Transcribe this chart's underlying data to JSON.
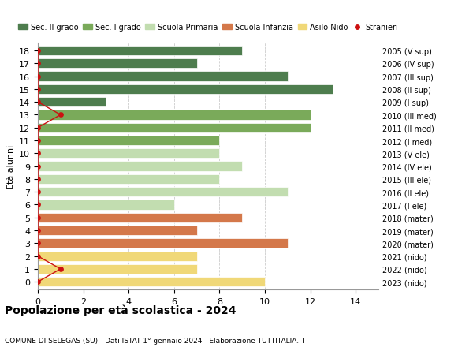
{
  "ages": [
    18,
    17,
    16,
    15,
    14,
    13,
    12,
    11,
    10,
    9,
    8,
    7,
    6,
    5,
    4,
    3,
    2,
    1,
    0
  ],
  "right_labels": [
    "2005 (V sup)",
    "2006 (IV sup)",
    "2007 (III sup)",
    "2008 (II sup)",
    "2009 (I sup)",
    "2010 (III med)",
    "2011 (II med)",
    "2012 (I med)",
    "2013 (V ele)",
    "2014 (IV ele)",
    "2015 (III ele)",
    "2016 (II ele)",
    "2017 (I ele)",
    "2018 (mater)",
    "2019 (mater)",
    "2020 (mater)",
    "2021 (nido)",
    "2022 (nido)",
    "2023 (nido)"
  ],
  "values": [
    9,
    7,
    11,
    13,
    3,
    12,
    12,
    8,
    8,
    9,
    8,
    11,
    6,
    9,
    7,
    11,
    7,
    7,
    10
  ],
  "bar_colors": [
    "#4e7d4e",
    "#4e7d4e",
    "#4e7d4e",
    "#4e7d4e",
    "#4e7d4e",
    "#7aaa5a",
    "#7aaa5a",
    "#7aaa5a",
    "#c2ddb0",
    "#c2ddb0",
    "#c2ddb0",
    "#c2ddb0",
    "#c2ddb0",
    "#d4784a",
    "#d4784a",
    "#d4784a",
    "#f0d878",
    "#f0d878",
    "#f0d878"
  ],
  "stranieri_values": [
    0,
    0,
    0,
    0,
    0,
    1,
    0,
    0,
    0,
    0,
    0,
    0,
    0,
    0,
    0,
    0,
    0,
    1,
    0
  ],
  "stranieri_color": "#cc1111",
  "legend_items": [
    {
      "label": "Sec. II grado",
      "color": "#4e7d4e"
    },
    {
      "label": "Sec. I grado",
      "color": "#7aaa5a"
    },
    {
      "label": "Scuola Primaria",
      "color": "#c2ddb0"
    },
    {
      "label": "Scuola Infanzia",
      "color": "#d4784a"
    },
    {
      "label": "Asilo Nido",
      "color": "#f0d878"
    },
    {
      "label": "Stranieri",
      "color": "#cc1111"
    }
  ],
  "ylabel_left": "Età alunni",
  "title_bold": "Popolazione per età scolastica - 2024",
  "subtitle": "COMUNE DI SELEGAS (SU) - Dati ISTAT 1° gennaio 2024 - Elaborazione TUTTITALIA.IT",
  "xlim": [
    0,
    15
  ],
  "xticks": [
    0,
    2,
    4,
    6,
    8,
    10,
    12,
    14
  ],
  "grid_color": "#cccccc",
  "background_color": "#ffffff",
  "bar_height": 0.75
}
